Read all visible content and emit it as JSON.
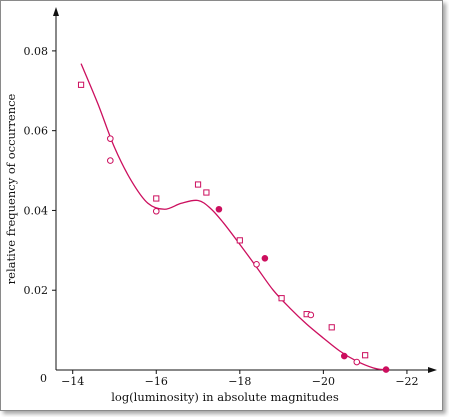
{
  "chart_data": {
    "type": "scatter",
    "xlabel": "log(luminosity) in absolute magnitudes",
    "ylabel": "relative frequency of occurrence",
    "x_reversed": true,
    "xlim": [
      -13.6,
      -22.6
    ],
    "ylim": [
      0,
      0.09
    ],
    "origin_label": "0",
    "x_ticks": [
      -14,
      -16,
      -18,
      -20,
      -22
    ],
    "x_tick_labels": [
      "−14",
      "−16",
      "−18",
      "−20",
      "−22"
    ],
    "y_ticks": [
      0.02,
      0.04,
      0.06,
      0.08
    ],
    "y_tick_labels": [
      "0.02",
      "0.04",
      "0.06",
      "0.08"
    ],
    "grid": false,
    "colors": {
      "series": "#cc0f5e",
      "axis": "#111111"
    },
    "series": [
      {
        "marker": "square-open",
        "points": [
          [
            -14.2,
            0.0715
          ],
          [
            -16.0,
            0.043
          ],
          [
            -17.0,
            0.0465
          ],
          [
            -17.2,
            0.0445
          ],
          [
            -18.0,
            0.0325
          ],
          [
            -19.0,
            0.018
          ],
          [
            -19.6,
            0.014
          ],
          [
            -20.2,
            0.0107
          ],
          [
            -21.0,
            0.0037
          ]
        ]
      },
      {
        "marker": "circle-open",
        "points": [
          [
            -14.9,
            0.058
          ],
          [
            -14.9,
            0.0525
          ],
          [
            -16.0,
            0.0398
          ],
          [
            -18.4,
            0.0265
          ],
          [
            -19.7,
            0.0138
          ],
          [
            -20.8,
            0.002
          ]
        ]
      },
      {
        "marker": "circle-filled",
        "points": [
          [
            -17.5,
            0.0403
          ],
          [
            -18.6,
            0.028
          ],
          [
            -20.5,
            0.0035
          ],
          [
            -21.5,
            0.0001
          ]
        ]
      }
    ],
    "fit_curve": {
      "style": "smooth line",
      "x": [
        -14.2,
        -14.6,
        -15.0,
        -15.4,
        -15.8,
        -16.2,
        -16.6,
        -17.0,
        -17.3,
        -17.6,
        -18.0,
        -18.4,
        -18.8,
        -19.2,
        -19.6,
        -20.0,
        -20.4,
        -20.8,
        -21.2,
        -21.5
      ],
      "y": [
        0.0768,
        0.0668,
        0.0558,
        0.0475,
        0.0418,
        0.0403,
        0.0418,
        0.0425,
        0.0405,
        0.037,
        0.0315,
        0.0258,
        0.02,
        0.0155,
        0.0115,
        0.008,
        0.0047,
        0.0022,
        0.0005,
        0.0
      ]
    }
  }
}
